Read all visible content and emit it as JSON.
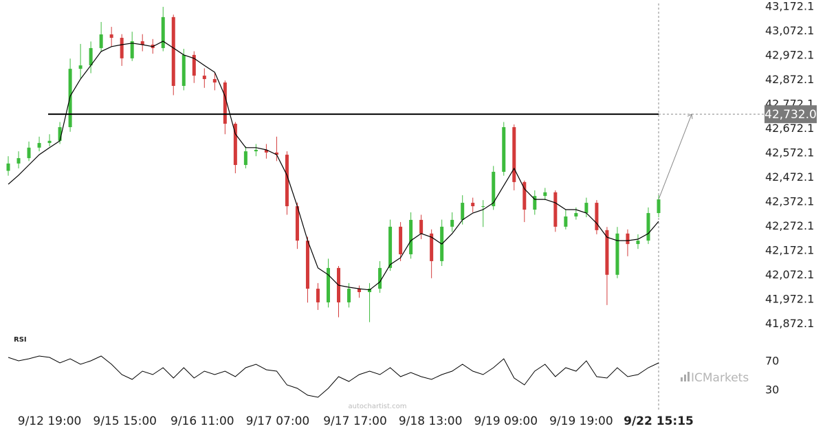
{
  "chart_data": {
    "type": "candlestick",
    "up_color": "#3dbb3d",
    "down_color": "#d33a3a",
    "open": [
      42500,
      42530,
      42552,
      42595,
      42614,
      42623,
      42679,
      42918,
      42932,
      43003,
      43059,
      43045,
      42961,
      43031,
      43017,
      43003,
      43130,
      42848,
      42975,
      42890,
      42876,
      42862,
      42693,
      42524,
      42580,
      42586,
      42575,
      42566,
      42355,
      42214,
      42017,
      41961,
      42102,
      41961,
      42017,
      42003,
      42017,
      42102,
      42271,
      42158,
      42299,
      42243,
      42130,
      42271,
      42299,
      42369,
      42355,
      42355,
      42496,
      42679,
      42454,
      42341,
      42397,
      42412,
      42271,
      42313,
      42327,
      42369,
      42257,
      42074,
      42243,
      42200,
      42214,
      42327
    ],
    "high": [
      42560,
      42580,
      42620,
      42640,
      42650,
      42700,
      42960,
      43020,
      43030,
      43110,
      43090,
      43060,
      43070,
      43060,
      43040,
      43172,
      43140,
      43000,
      42990,
      42920,
      42900,
      42870,
      42700,
      42600,
      42610,
      42610,
      42640,
      42580,
      42370,
      42230,
      42040,
      42140,
      42110,
      42040,
      42030,
      42040,
      42130,
      42300,
      42290,
      42330,
      42320,
      42260,
      42300,
      42330,
      42400,
      42390,
      42380,
      42520,
      42700,
      42690,
      42460,
      42420,
      42430,
      42420,
      42340,
      42350,
      42390,
      42380,
      42270,
      42270,
      42260,
      42240,
      42350,
      42400
    ],
    "low": [
      42480,
      42510,
      42540,
      42580,
      42600,
      42610,
      42660,
      42880,
      42900,
      42990,
      43010,
      42930,
      42950,
      42990,
      42980,
      42990,
      42810,
      42830,
      42860,
      42840,
      42830,
      42650,
      42490,
      42510,
      42560,
      42550,
      42540,
      42320,
      42180,
      41960,
      41930,
      41940,
      41900,
      41940,
      41980,
      41880,
      42000,
      42090,
      42130,
      42140,
      42220,
      42060,
      42110,
      42250,
      42280,
      42330,
      42270,
      42340,
      42480,
      42420,
      42290,
      42320,
      42380,
      42250,
      42260,
      42300,
      42310,
      42240,
      41950,
      42060,
      42150,
      42180,
      42200,
      42310
    ],
    "close": [
      42530,
      42552,
      42595,
      42614,
      42623,
      42679,
      42918,
      42932,
      43003,
      43059,
      43045,
      42961,
      43031,
      43017,
      43003,
      43130,
      42848,
      42975,
      42890,
      42876,
      42862,
      42693,
      42524,
      42580,
      42586,
      42575,
      42566,
      42355,
      42214,
      42017,
      41961,
      42102,
      41961,
      42017,
      42003,
      42017,
      42102,
      42271,
      42158,
      42299,
      42243,
      42130,
      42271,
      42299,
      42369,
      42355,
      42355,
      42496,
      42679,
      42454,
      42341,
      42397,
      42412,
      42271,
      42313,
      42327,
      42369,
      42257,
      42074,
      42243,
      42200,
      42214,
      42327,
      42383
    ],
    "moving_average": {
      "color": "#000000",
      "values": [
        42445,
        42482,
        42524,
        42566,
        42595,
        42623,
        42806,
        42876,
        42932,
        42989,
        43009,
        43017,
        43023,
        43017,
        43009,
        43031,
        43003,
        42975,
        42961,
        42932,
        42904,
        42806,
        42651,
        42595,
        42595,
        42586,
        42566,
        42482,
        42355,
        42214,
        42102,
        42074,
        42031,
        42023,
        42017,
        42012,
        42045,
        42116,
        42144,
        42214,
        42243,
        42228,
        42200,
        42243,
        42299,
        42327,
        42341,
        42369,
        42440,
        42510,
        42426,
        42383,
        42383,
        42369,
        42341,
        42341,
        42327,
        42285,
        42228,
        42214,
        42214,
        42220,
        42243,
        42293
      ]
    },
    "xlim": [
      0,
      63
    ],
    "xticks": [
      {
        "value": 4,
        "label": "9/12 19:00"
      },
      {
        "value": 11.3,
        "label": "9/15 15:00"
      },
      {
        "value": 18.8,
        "label": "9/16 11:00"
      },
      {
        "value": 26.1,
        "label": "9/17 07:00"
      },
      {
        "value": 33.6,
        "label": "9/17 17:00"
      },
      {
        "value": 40.9,
        "label": "9/18 13:00"
      },
      {
        "value": 48.2,
        "label": "9/19 09:00"
      },
      {
        "value": 55.5,
        "label": "9/19 19:00"
      },
      {
        "value": 63,
        "label": "9/22 15:15"
      }
    ],
    "ylim": [
      41820,
      43200
    ],
    "yticks": [
      {
        "value": 41872.1,
        "label": "41,872.1"
      },
      {
        "value": 41972.1,
        "label": "41,972.1"
      },
      {
        "value": 42072.1,
        "label": "42,072.1"
      },
      {
        "value": 42172.1,
        "label": "42,172.1"
      },
      {
        "value": 42272.1,
        "label": "42,272.1"
      },
      {
        "value": 42372.1,
        "label": "42,372.1"
      },
      {
        "value": 42472.1,
        "label": "42,472.1"
      },
      {
        "value": 42572.1,
        "label": "42,572.1"
      },
      {
        "value": 42672.1,
        "label": "42,672.1"
      },
      {
        "value": 42772.1,
        "label": "42,772.1"
      },
      {
        "value": 42872.1,
        "label": "42,872.1"
      },
      {
        "value": 42972.1,
        "label": "42,972.1"
      },
      {
        "value": 43072.1,
        "label": "43,072.1"
      },
      {
        "value": 43172.1,
        "label": "43,172.1"
      }
    ],
    "level": {
      "value": 42732.0,
      "label": "42,732.0"
    },
    "rsi": {
      "label": "RSI",
      "ylim": [
        5,
        95
      ],
      "yticks": [
        30,
        70
      ],
      "values": [
        75.5,
        70.7,
        73.6,
        77.4,
        75.5,
        67.9,
        73.6,
        66,
        70.7,
        77.4,
        66,
        51.7,
        45,
        56.4,
        51.7,
        61.2,
        46.9,
        61.2,
        46.9,
        56.4,
        51.7,
        56.4,
        48.8,
        61.2,
        66,
        58.3,
        56.4,
        37.4,
        32.6,
        23.1,
        20.2,
        32.6,
        48.8,
        42.1,
        51.7,
        56.4,
        51.7,
        61.2,
        48.8,
        54.5,
        48.8,
        45,
        51.7,
        56.4,
        66,
        56.4,
        51.7,
        61.2,
        73.6,
        46.9,
        37.4,
        56.4,
        66,
        48.8,
        61.2,
        56.4,
        70.7,
        48.8,
        46.9,
        61.2,
        48.8,
        51.7,
        61.2,
        67.9
      ]
    },
    "watermark": "autochartist.com",
    "brand": "ICMarkets"
  }
}
